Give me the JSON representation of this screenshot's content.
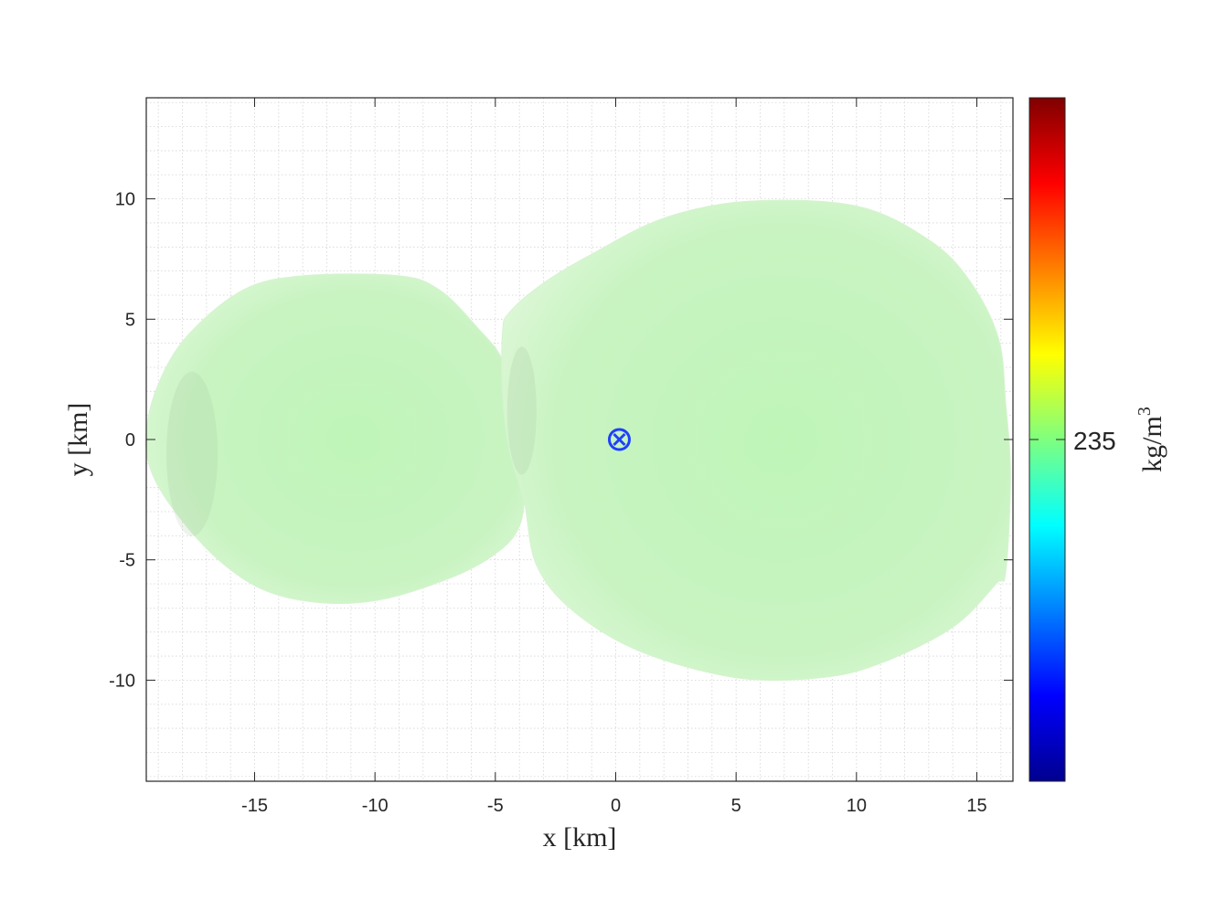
{
  "chart_data": {
    "type": "heatmap",
    "xlabel": "x [km]",
    "ylabel": "y [km]",
    "xlim": [
      -19.5,
      16.5
    ],
    "ylim": [
      -14.2,
      14.2
    ],
    "xticks": [
      -15,
      -10,
      -5,
      0,
      5,
      10,
      15
    ],
    "yticks": [
      -10,
      -5,
      0,
      5,
      10
    ],
    "grid": "minor",
    "colorbar": {
      "label_base": "kg/m",
      "label_exponent": "3",
      "tick_value": "235",
      "colormap": "jet",
      "colors": [
        "#00008f",
        "#0000ff",
        "#00ffff",
        "#7fff7f",
        "#ffff00",
        "#ff0000",
        "#800000"
      ]
    },
    "lobes": [
      {
        "name": "small lobe",
        "outline": [
          [
            -19.5,
            0.3
          ],
          [
            -19,
            2.3
          ],
          [
            -17.8,
            4.3
          ],
          [
            -15.5,
            6.2
          ],
          [
            -13,
            6.8
          ],
          [
            -9,
            6.8
          ],
          [
            -7.3,
            6.2
          ],
          [
            -5.7,
            4.6
          ],
          [
            -4.7,
            3.3
          ],
          [
            -4.2,
            1.2
          ],
          [
            -4.1,
            -1.2
          ],
          [
            -3.8,
            -2.2
          ],
          [
            -4,
            -3.6
          ],
          [
            -4.8,
            -4.6
          ],
          [
            -6.5,
            -5.6
          ],
          [
            -9.5,
            -6.6
          ],
          [
            -12,
            -6.8
          ],
          [
            -14.5,
            -6.3
          ],
          [
            -16.5,
            -5
          ],
          [
            -18.3,
            -3
          ],
          [
            -19.3,
            -1.3
          ]
        ]
      },
      {
        "name": "large lobe",
        "outline": [
          [
            -4.7,
            4.5
          ],
          [
            -4.4,
            5.3
          ],
          [
            -3,
            6.5
          ],
          [
            -1,
            7.7
          ],
          [
            2,
            9.2
          ],
          [
            5.5,
            9.9
          ],
          [
            10,
            9.7
          ],
          [
            13,
            8.3
          ],
          [
            14.7,
            6.6
          ],
          [
            15.9,
            4.2
          ],
          [
            16.2,
            1.5
          ],
          [
            16.4,
            -1.5
          ],
          [
            16.2,
            -5.5
          ],
          [
            15.8,
            -6
          ],
          [
            14,
            -7.8
          ],
          [
            11,
            -9.3
          ],
          [
            8.5,
            -9.9
          ],
          [
            5,
            -9.9
          ],
          [
            1,
            -8.8
          ],
          [
            -1.8,
            -7.1
          ],
          [
            -3.3,
            -5.2
          ],
          [
            -3.8,
            -2.6
          ],
          [
            -4.4,
            -0.5
          ],
          [
            -4.7,
            1.8
          ]
        ]
      }
    ],
    "marker": {
      "name": "center of mass",
      "x": 0.15,
      "y": 0,
      "symbol": "circle-x",
      "color": "#1f3fff"
    }
  }
}
